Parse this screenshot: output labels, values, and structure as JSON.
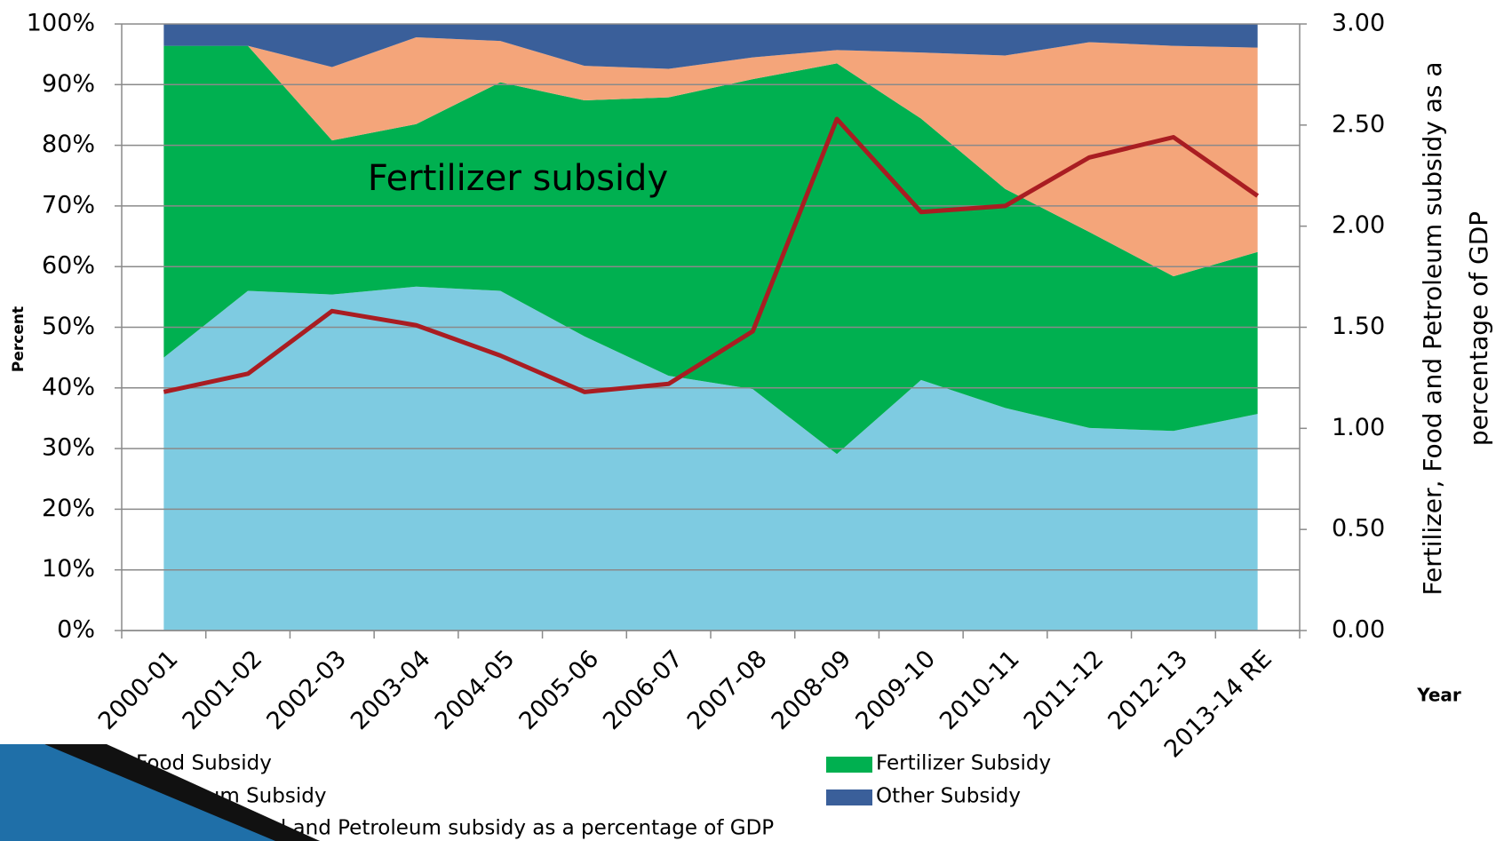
{
  "chart_data": {
    "type": "area",
    "stacked": true,
    "categories": [
      "2000-01",
      "2001-02",
      "2002-03",
      "2003-04",
      "2004-05",
      "2005-06",
      "2006-07",
      "2007-08",
      "2008-09",
      "2009-10",
      "2010-11",
      "2011-12",
      "2012-13",
      "2013-14 RE"
    ],
    "series": [
      {
        "name": "Food Subsidy",
        "color": "#7ecbe1",
        "values": [
          45,
          56,
          55.4,
          56.7,
          56,
          48.5,
          42,
          39.8,
          29.1,
          41.3,
          36.7,
          33.4,
          32.9,
          35.7
        ]
      },
      {
        "name": "Fertilizer Subsidy",
        "color": "#00b050",
        "values": [
          51.4,
          40.4,
          25.4,
          26.8,
          34.4,
          38.9,
          45.9,
          51.1,
          64.4,
          43.1,
          36.1,
          32.3,
          25.5,
          26.7
        ]
      },
      {
        "name": "Petroleum Subsidy",
        "color": "#f4a57a",
        "values": [
          0,
          0,
          12.1,
          14.3,
          6.8,
          5.7,
          4.7,
          3.6,
          2.2,
          10.9,
          22,
          31.3,
          38,
          33.7
        ]
      },
      {
        "name": "Other Subsidy",
        "color": "#3a5f9a",
        "values": [
          3.6,
          3.6,
          7.1,
          2.2,
          2.8,
          6.9,
          7.4,
          5.5,
          4.3,
          4.7,
          5.2,
          3,
          3.6,
          3.9
        ]
      },
      {
        "name": "Fertilizer, Food and Petroleum subsidy as a percentage of GDP",
        "color": "#a91d22",
        "axis": "y2",
        "type": "line",
        "values": [
          1.18,
          1.27,
          1.58,
          1.51,
          1.36,
          1.18,
          1.22,
          1.48,
          2.53,
          2.07,
          2.1,
          2.34,
          2.44,
          2.15
        ]
      }
    ],
    "ylim": [
      0,
      100
    ],
    "yticks": [
      {
        "value": 0,
        "label": "0%"
      },
      {
        "value": 10,
        "label": "10%"
      },
      {
        "value": 20,
        "label": "20%"
      },
      {
        "value": 30,
        "label": "30%"
      },
      {
        "value": 40,
        "label": "40%"
      },
      {
        "value": 50,
        "label": "50%"
      },
      {
        "value": 60,
        "label": "60%"
      },
      {
        "value": 70,
        "label": "70%"
      },
      {
        "value": 80,
        "label": "80%"
      },
      {
        "value": 90,
        "label": "90%"
      },
      {
        "value": 100,
        "label": "100%"
      }
    ],
    "y2lim": [
      0,
      3
    ],
    "y2ticks": [
      {
        "value": 0,
        "label": "0.00"
      },
      {
        "value": 0.5,
        "label": "0.50"
      },
      {
        "value": 1,
        "label": "1.00"
      },
      {
        "value": 1.5,
        "label": "1.50"
      },
      {
        "value": 2,
        "label": "2.00"
      },
      {
        "value": 2.5,
        "label": "2.50"
      },
      {
        "value": 3,
        "label": "3.00"
      }
    ],
    "ylabel": "Percent",
    "y2label": [
      "Fertilizer, Food and Petroleum subsidy as a",
      "percentage of GDP"
    ],
    "xlabel": "Year",
    "annotation": "Fertilizer subsidy",
    "grid": true
  }
}
